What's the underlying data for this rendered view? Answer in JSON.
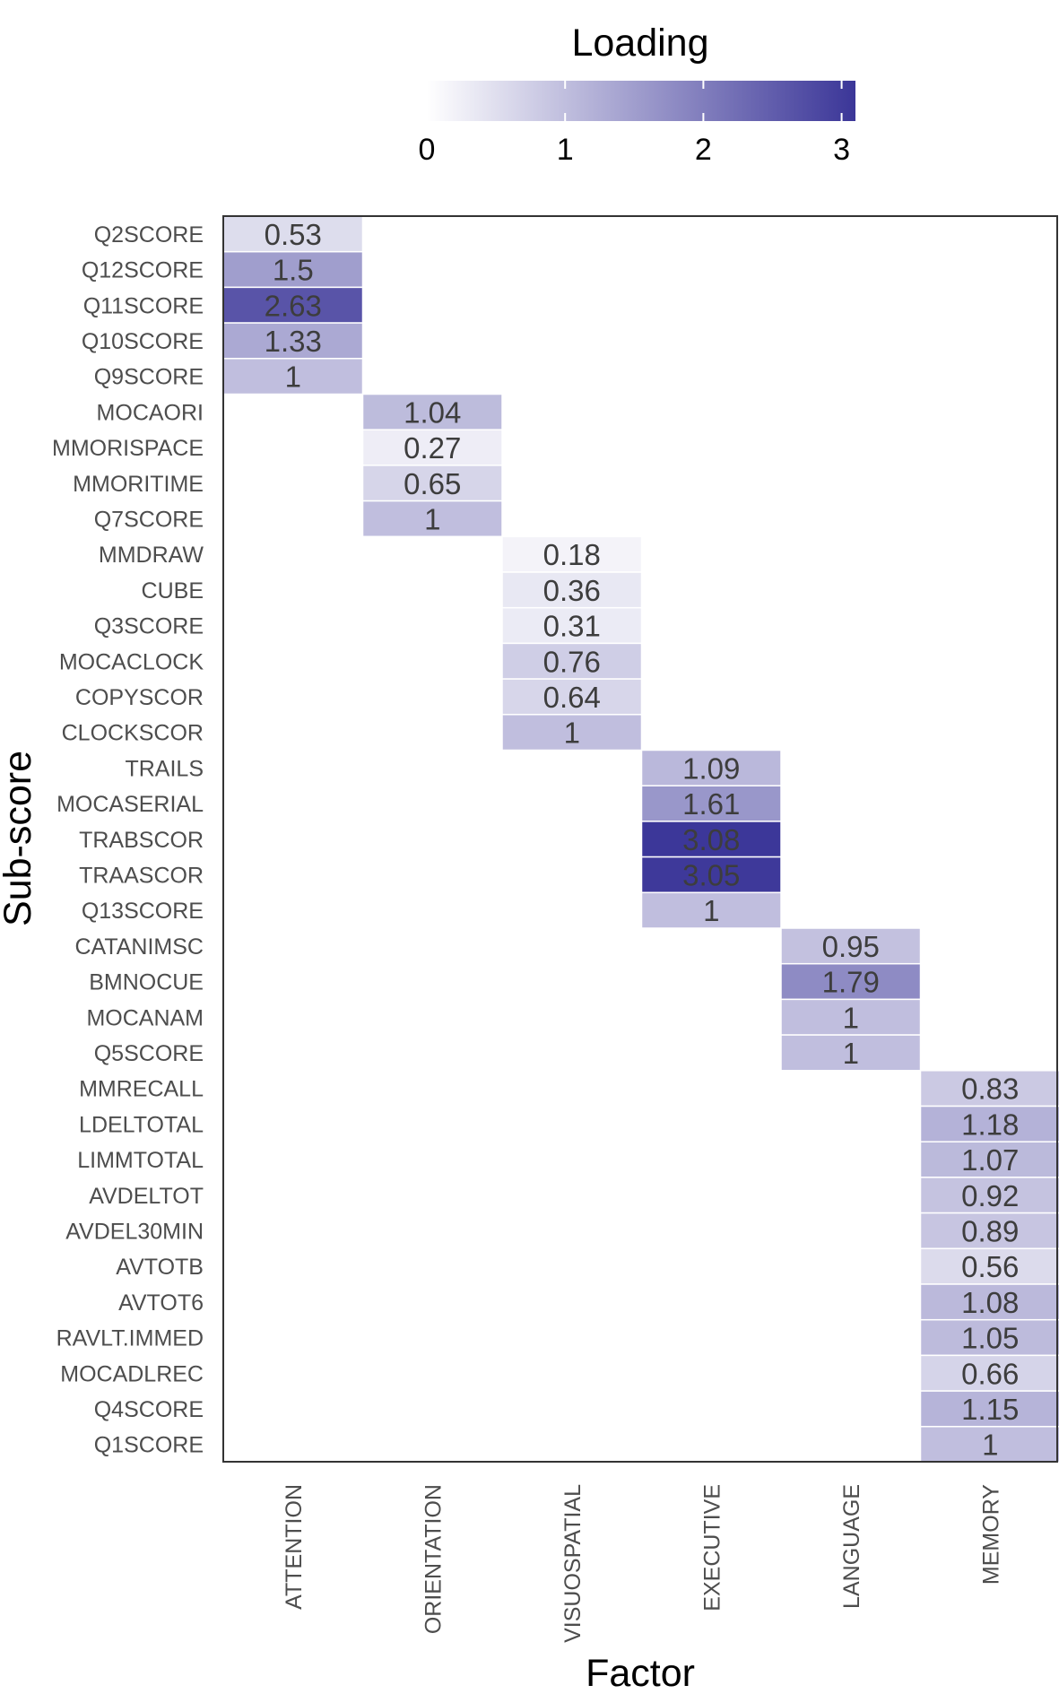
{
  "chart_data": {
    "type": "heatmap",
    "title": "",
    "xlabel": "Factor",
    "ylabel": "Sub-score",
    "x_categories": [
      "ATTENTION",
      "ORIENTATION",
      "VISUOSPATIAL",
      "EXECUTIVE",
      "LANGUAGE",
      "MEMORY"
    ],
    "y_categories": [
      "Q2SCORE",
      "Q12SCORE",
      "Q11SCORE",
      "Q10SCORE",
      "Q9SCORE",
      "MOCAORI",
      "MMORISPACE",
      "MMORITIME",
      "Q7SCORE",
      "MMDRAW",
      "CUBE",
      "Q3SCORE",
      "MOCACLOCK",
      "COPYSCOR",
      "CLOCKSCOR",
      "TRAILS",
      "MOCASERIAL",
      "TRABSCOR",
      "TRAASCOR",
      "Q13SCORE",
      "CATANIMSC",
      "BMNOCUE",
      "MOCANAM",
      "Q5SCORE",
      "MMRECALL",
      "LDELTOTAL",
      "LIMMTOTAL",
      "AVDELTOT",
      "AVDEL30MIN",
      "AVTOTB",
      "AVTOT6",
      "RAVLT.IMMED",
      "MOCADLREC",
      "Q4SCORE",
      "Q1SCORE"
    ],
    "cells": [
      {
        "x": "ATTENTION",
        "y": "Q2SCORE",
        "value": 0.53,
        "label": "0.53"
      },
      {
        "x": "ATTENTION",
        "y": "Q12SCORE",
        "value": 1.5,
        "label": "1.5"
      },
      {
        "x": "ATTENTION",
        "y": "Q11SCORE",
        "value": 2.63,
        "label": "2.63"
      },
      {
        "x": "ATTENTION",
        "y": "Q10SCORE",
        "value": 1.33,
        "label": "1.33"
      },
      {
        "x": "ATTENTION",
        "y": "Q9SCORE",
        "value": 1,
        "label": "1"
      },
      {
        "x": "ORIENTATION",
        "y": "MOCAORI",
        "value": 1.04,
        "label": "1.04"
      },
      {
        "x": "ORIENTATION",
        "y": "MMORISPACE",
        "value": 0.27,
        "label": "0.27"
      },
      {
        "x": "ORIENTATION",
        "y": "MMORITIME",
        "value": 0.65,
        "label": "0.65"
      },
      {
        "x": "ORIENTATION",
        "y": "Q7SCORE",
        "value": 1,
        "label": "1"
      },
      {
        "x": "VISUOSPATIAL",
        "y": "MMDRAW",
        "value": 0.18,
        "label": "0.18"
      },
      {
        "x": "VISUOSPATIAL",
        "y": "CUBE",
        "value": 0.36,
        "label": "0.36"
      },
      {
        "x": "VISUOSPATIAL",
        "y": "Q3SCORE",
        "value": 0.31,
        "label": "0.31"
      },
      {
        "x": "VISUOSPATIAL",
        "y": "MOCACLOCK",
        "value": 0.76,
        "label": "0.76"
      },
      {
        "x": "VISUOSPATIAL",
        "y": "COPYSCOR",
        "value": 0.64,
        "label": "0.64"
      },
      {
        "x": "VISUOSPATIAL",
        "y": "CLOCKSCOR",
        "value": 1,
        "label": "1"
      },
      {
        "x": "EXECUTIVE",
        "y": "TRAILS",
        "value": 1.09,
        "label": "1.09"
      },
      {
        "x": "EXECUTIVE",
        "y": "MOCASERIAL",
        "value": 1.61,
        "label": "1.61"
      },
      {
        "x": "EXECUTIVE",
        "y": "TRABSCOR",
        "value": 3.08,
        "label": "3.08"
      },
      {
        "x": "EXECUTIVE",
        "y": "TRAASCOR",
        "value": 3.05,
        "label": "3.05"
      },
      {
        "x": "EXECUTIVE",
        "y": "Q13SCORE",
        "value": 1,
        "label": "1"
      },
      {
        "x": "LANGUAGE",
        "y": "CATANIMSC",
        "value": 0.95,
        "label": "0.95"
      },
      {
        "x": "LANGUAGE",
        "y": "BMNOCUE",
        "value": 1.79,
        "label": "1.79"
      },
      {
        "x": "LANGUAGE",
        "y": "MOCANAM",
        "value": 1,
        "label": "1"
      },
      {
        "x": "LANGUAGE",
        "y": "Q5SCORE",
        "value": 1,
        "label": "1"
      },
      {
        "x": "MEMORY",
        "y": "MMRECALL",
        "value": 0.83,
        "label": "0.83"
      },
      {
        "x": "MEMORY",
        "y": "LDELTOTAL",
        "value": 1.18,
        "label": "1.18"
      },
      {
        "x": "MEMORY",
        "y": "LIMMTOTAL",
        "value": 1.07,
        "label": "1.07"
      },
      {
        "x": "MEMORY",
        "y": "AVDELTOT",
        "value": 0.92,
        "label": "0.92"
      },
      {
        "x": "MEMORY",
        "y": "AVDEL30MIN",
        "value": 0.89,
        "label": "0.89"
      },
      {
        "x": "MEMORY",
        "y": "AVTOTB",
        "value": 0.56,
        "label": "0.56"
      },
      {
        "x": "MEMORY",
        "y": "AVTOT6",
        "value": 1.08,
        "label": "1.08"
      },
      {
        "x": "MEMORY",
        "y": "RAVLT.IMMED",
        "value": 1.05,
        "label": "1.05"
      },
      {
        "x": "MEMORY",
        "y": "MOCADLREC",
        "value": 0.66,
        "label": "0.66"
      },
      {
        "x": "MEMORY",
        "y": "Q4SCORE",
        "value": 1.15,
        "label": "1.15"
      },
      {
        "x": "MEMORY",
        "y": "Q1SCORE",
        "value": 1,
        "label": "1"
      }
    ],
    "legend": {
      "title": "Loading",
      "ticks": [
        "0",
        "1",
        "2",
        "3"
      ],
      "range": [
        0,
        3.1
      ],
      "placement": "top",
      "color_low": "#ffffff",
      "color_high": "#3b3698"
    },
    "grid": false
  }
}
